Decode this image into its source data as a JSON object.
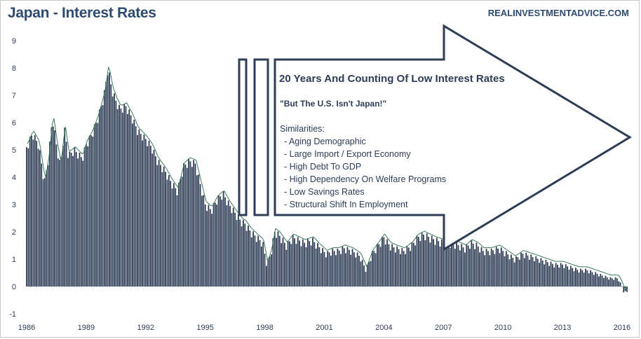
{
  "chart_data": {
    "type": "bar",
    "title": "Japan - Interest Rates",
    "source": "REALINVESTMENTADVICE.COM",
    "ylim": [
      -1,
      9
    ],
    "y_ticks": [
      -1,
      0,
      1,
      2,
      3,
      4,
      5,
      6,
      7,
      8,
      9
    ],
    "x_ticks": [
      "1986",
      "1989",
      "1992",
      "1995",
      "1998",
      "2001",
      "2004",
      "2007",
      "2010",
      "2013",
      "2016"
    ],
    "x_range": [
      1986.0,
      2016.25
    ],
    "bar_color": "#2e3d55",
    "line_color": "#3a7a5a",
    "series": [
      {
        "x": [
          1986.0,
          1986.3,
          1986.6,
          1986.9,
          1987.1,
          1987.3,
          1987.5,
          1987.7,
          1987.9,
          1988.1,
          1988.4,
          1988.8,
          1989.0,
          1989.3,
          1989.6,
          1989.9,
          1990.1,
          1990.3,
          1990.5,
          1990.7,
          1991.0,
          1991.3,
          1991.6,
          1992.0,
          1992.3,
          1992.6,
          1993.0,
          1993.3,
          1993.6,
          1993.9,
          1994.2,
          1994.5,
          1994.8,
          1995.0,
          1995.3,
          1995.6,
          1995.9,
          1996.2,
          1996.5,
          1996.8,
          1997.0,
          1997.3,
          1997.6,
          1997.9,
          1998.1,
          1998.3,
          1998.5,
          1998.7,
          1998.9,
          1999.1,
          1999.4,
          1999.7,
          2000.0,
          2000.4,
          2000.8,
          2001.1,
          2001.4,
          2001.7,
          2002.0,
          2002.4,
          2002.8,
          2003.1,
          2003.4,
          2003.7,
          2004.0,
          2004.3,
          2004.6,
          2005.0,
          2005.4,
          2005.7,
          2006.0,
          2006.3,
          2006.6,
          2007.0,
          2007.4,
          2007.8,
          2008.1,
          2008.4,
          2008.7,
          2009.0,
          2009.4,
          2009.8,
          2010.2,
          2010.6,
          2011.0,
          2011.4,
          2011.8,
          2012.2,
          2012.6,
          2013.0,
          2013.4,
          2013.8,
          2014.2,
          2014.6,
          2015.0,
          2015.4,
          2015.8,
          2016.0,
          2016.1
        ],
        "values": [
          5.1,
          5.6,
          5.2,
          3.8,
          4.7,
          6.2,
          5.2,
          4.4,
          5.8,
          4.8,
          5.0,
          4.7,
          5.2,
          5.6,
          6.2,
          7.0,
          8.0,
          7.2,
          6.8,
          6.5,
          6.6,
          6.2,
          5.7,
          5.4,
          5.1,
          4.6,
          4.2,
          3.8,
          3.5,
          4.4,
          4.6,
          4.5,
          3.6,
          3.0,
          2.8,
          3.2,
          3.4,
          3.0,
          2.7,
          2.4,
          2.3,
          2.0,
          1.8,
          1.6,
          0.8,
          1.2,
          2.0,
          1.9,
          1.7,
          1.5,
          1.8,
          1.7,
          1.6,
          1.7,
          1.4,
          1.2,
          1.3,
          1.3,
          1.4,
          1.3,
          1.1,
          0.6,
          1.2,
          1.5,
          1.8,
          1.5,
          1.4,
          1.3,
          1.5,
          1.8,
          1.9,
          1.8,
          1.7,
          1.6,
          1.6,
          1.5,
          1.4,
          1.6,
          1.5,
          1.3,
          1.3,
          1.4,
          1.2,
          1.0,
          1.2,
          1.1,
          1.0,
          0.9,
          0.8,
          0.8,
          0.7,
          0.6,
          0.6,
          0.5,
          0.4,
          0.3,
          0.3,
          0.0,
          -0.2
        ]
      }
    ],
    "annotation": {
      "headline": "20 Years And Counting Of Low Interest Rates",
      "subhead": "\"But The U.S. Isn't Japan!\"",
      "list_title": "Similarities:",
      "items": [
        "- Aging Demographic",
        "- Large Import /  Export Economy",
        "- High Debt To GDP",
        "- High Dependency On Welfare Programs",
        "- Low Savings Rates",
        "- Structural Shift In Employment"
      ]
    }
  }
}
